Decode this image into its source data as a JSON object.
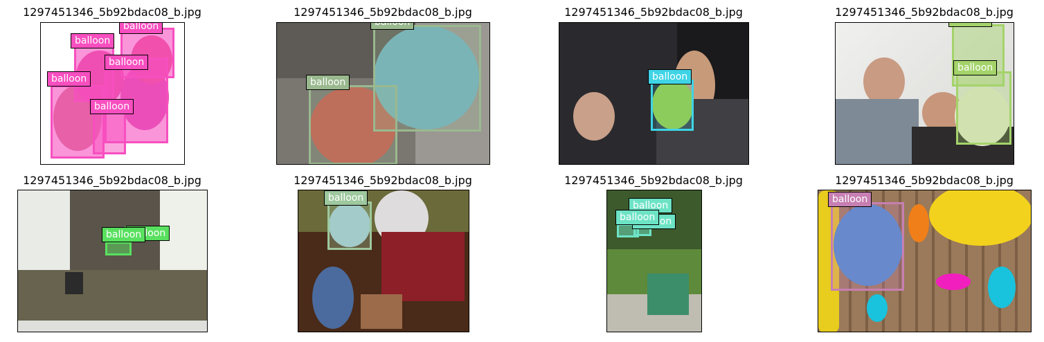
{
  "panels": [
    {
      "title": "1297451346_5b92bdac08_b.jpg",
      "labels": [
        "balloon",
        "balloon",
        "balloon",
        "balloon",
        "balloon"
      ],
      "color": "#f74fbf"
    },
    {
      "title": "1297451346_5b92bdac08_b.jpg",
      "labels": [
        "balloon",
        "balloon"
      ],
      "color": "#9ab98f"
    },
    {
      "title": "1297451346_5b92bdac08_b.jpg",
      "labels": [
        "balloon"
      ],
      "color": "#3fd4e6"
    },
    {
      "title": "1297451346_5b92bdac08_b.jpg",
      "labels": [
        "balloon",
        "balloon"
      ],
      "color": "#a4d36a"
    },
    {
      "title": "1297451346_5b92bdac08_b.jpg",
      "labels": [
        "balloon",
        "balloon"
      ],
      "color": "#59e05f"
    },
    {
      "title": "1297451346_5b92bdac08_b.jpg",
      "labels": [
        "balloon"
      ],
      "color": "#9ec89e"
    },
    {
      "title": "1297451346_5b92bdac08_b.jpg",
      "labels": [
        "balloon",
        "balloon",
        "balloon"
      ],
      "color": "#6de3c5"
    },
    {
      "title": "1297451346_5b92bdac08_b.jpg",
      "labels": [
        "balloon"
      ],
      "color": "#c77fb2"
    }
  ]
}
